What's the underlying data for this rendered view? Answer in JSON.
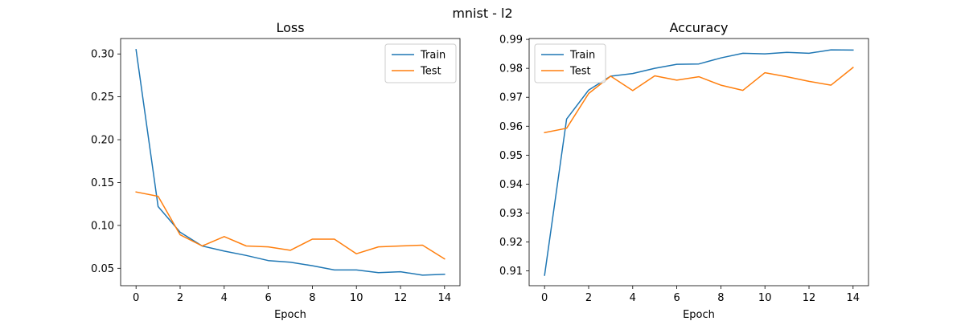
{
  "figure": {
    "suptitle": "mnist - l2"
  },
  "chart_data": [
    {
      "type": "line",
      "title": "Loss",
      "xlabel": "Epoch",
      "ylabel": "",
      "x": [
        0,
        1,
        2,
        3,
        4,
        5,
        6,
        7,
        8,
        9,
        10,
        11,
        12,
        13,
        14
      ],
      "xlim": [
        -0.7,
        14.7
      ],
      "ylim": [
        0.0297,
        0.318
      ],
      "xticks": [
        0,
        2,
        4,
        6,
        8,
        10,
        12,
        14
      ],
      "yticks": [
        0.05,
        0.1,
        0.15,
        0.2,
        0.25,
        0.3
      ],
      "ytick_labels": [
        "0.05",
        "0.10",
        "0.15",
        "0.20",
        "0.25",
        "0.30"
      ],
      "grid": false,
      "legend_loc": "upper right",
      "series": [
        {
          "name": "Train",
          "color": "#1f77b4",
          "values": [
            0.305,
            0.122,
            0.092,
            0.076,
            0.07,
            0.065,
            0.059,
            0.057,
            0.053,
            0.048,
            0.048,
            0.045,
            0.046,
            0.042,
            0.043
          ]
        },
        {
          "name": "Test",
          "color": "#ff7f0e",
          "values": [
            0.139,
            0.134,
            0.089,
            0.076,
            0.087,
            0.076,
            0.075,
            0.071,
            0.084,
            0.084,
            0.067,
            0.075,
            0.076,
            0.077,
            0.061
          ]
        }
      ]
    },
    {
      "type": "line",
      "title": "Accuracy",
      "xlabel": "Epoch",
      "ylabel": "",
      "x": [
        0,
        1,
        2,
        3,
        4,
        5,
        6,
        7,
        8,
        9,
        10,
        11,
        12,
        13,
        14
      ],
      "xlim": [
        -0.7,
        14.7
      ],
      "ylim": [
        0.9049,
        0.9903
      ],
      "xticks": [
        0,
        2,
        4,
        6,
        8,
        10,
        12,
        14
      ],
      "yticks": [
        0.91,
        0.92,
        0.93,
        0.94,
        0.95,
        0.96,
        0.97,
        0.98,
        0.99
      ],
      "ytick_labels": [
        "0.91",
        "0.92",
        "0.93",
        "0.94",
        "0.95",
        "0.96",
        "0.97",
        "0.98",
        "0.99"
      ],
      "grid": false,
      "legend_loc": "upper left",
      "series": [
        {
          "name": "Train",
          "color": "#1f77b4",
          "values": [
            0.9085,
            0.9625,
            0.9725,
            0.9773,
            0.9782,
            0.98,
            0.9814,
            0.9815,
            0.9836,
            0.9852,
            0.985,
            0.9855,
            0.9852,
            0.9864,
            0.9863
          ]
        },
        {
          "name": "Test",
          "color": "#ff7f0e",
          "values": [
            0.9578,
            0.9593,
            0.9713,
            0.9773,
            0.9723,
            0.9774,
            0.9759,
            0.9771,
            0.9742,
            0.9724,
            0.9785,
            0.9771,
            0.9755,
            0.9742,
            0.9803
          ]
        }
      ]
    }
  ]
}
